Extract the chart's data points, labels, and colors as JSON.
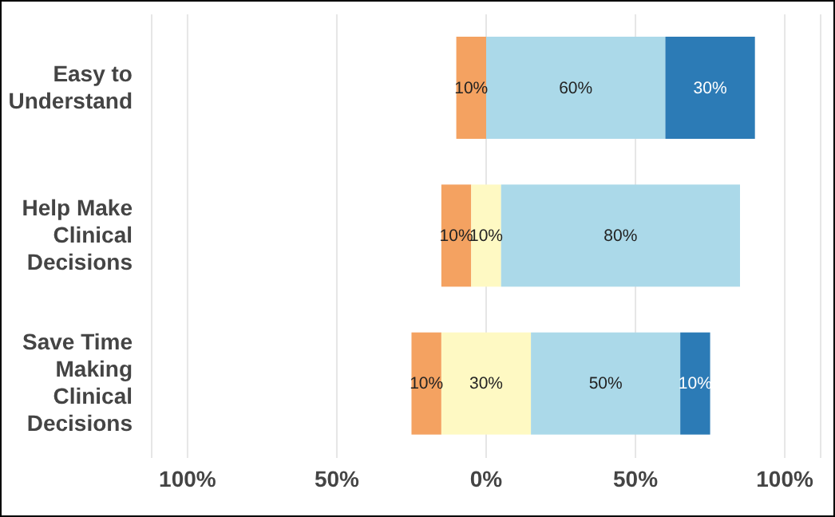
{
  "chart_data": {
    "type": "bar",
    "orientation": "horizontal",
    "categories": [
      "Easy to Understand",
      "Help Make Clinical Decisions",
      "Save Time Making Clinical Decisions"
    ],
    "series": [
      {
        "color": "#f4a261",
        "base": [
          -10,
          -15,
          -25
        ],
        "values": [
          10,
          10,
          10
        ],
        "value_labels": [
          "10%",
          "10%",
          "10%"
        ]
      },
      {
        "color": "#fef9c3",
        "base": [
          null,
          -5,
          -15
        ],
        "values": [
          null,
          10,
          30
        ],
        "value_labels": [
          null,
          "10%",
          "30%"
        ]
      },
      {
        "color": "#abd9e9",
        "base": [
          0,
          5,
          15
        ],
        "values": [
          60,
          80,
          50
        ],
        "value_labels": [
          "60%",
          "80%",
          "50%"
        ]
      },
      {
        "color": "#2c7bb6",
        "base": [
          60,
          null,
          65
        ],
        "values": [
          30,
          null,
          10
        ],
        "value_labels": [
          "30%",
          null,
          "10%"
        ]
      }
    ],
    "xlim": [
      -112,
      112
    ],
    "xticks": [
      {
        "value": -100,
        "label": "100%"
      },
      {
        "value": -50,
        "label": "50%"
      },
      {
        "value": 0,
        "label": "0%"
      },
      {
        "value": 50,
        "label": "50%"
      },
      {
        "value": 100,
        "label": "100%"
      }
    ],
    "grid": "x",
    "legend": false
  }
}
